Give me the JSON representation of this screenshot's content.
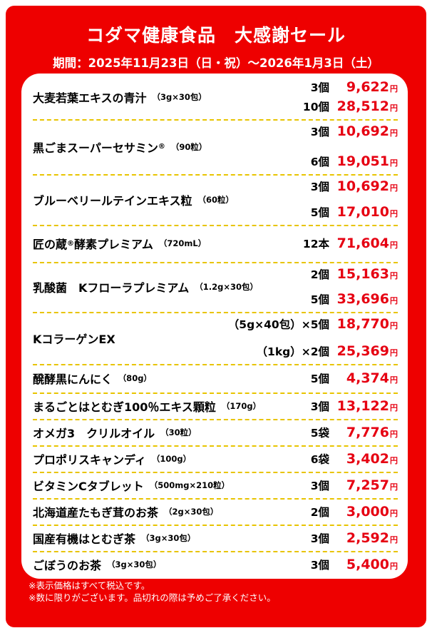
{
  "header": {
    "title": "コダマ健康食品　大感謝セール",
    "period": "期間：2025年11月23日（日・祝）～2026年1月3日（土）"
  },
  "products": [
    {
      "name": "大麦若葉エキスの青汁",
      "spec": "（3g×30包）",
      "tiers": [
        {
          "qty": "3個",
          "price": "9,622",
          "yen": "円"
        },
        {
          "qty": "10個",
          "price": "28,512",
          "yen": "円"
        }
      ]
    },
    {
      "name": "黒ごまスーパーセサミン",
      "mark": "®",
      "spec": "（90粒）",
      "tiers": [
        {
          "qty": "3個",
          "price": "10,692",
          "yen": "円"
        },
        {
          "qty": "6個",
          "price": "19,051",
          "yen": "円"
        }
      ]
    },
    {
      "name": "ブルーベリールテインエキス粒",
      "spec": "（60粒）",
      "tiers": [
        {
          "qty": "3個",
          "price": "10,692",
          "yen": "円"
        },
        {
          "qty": "5個",
          "price": "17,010",
          "yen": "円"
        }
      ]
    },
    {
      "name": "匠の蔵",
      "mark": "®",
      "name2": "酵素プレミアム",
      "spec": "（720mL）",
      "tiers": [
        {
          "qty": "12本",
          "price": "71,604",
          "yen": "円"
        }
      ]
    },
    {
      "name": "乳酸菌　Kフローラプレミアム",
      "spec": "（1.2g×30包）",
      "tiers": [
        {
          "qty": "2個",
          "price": "15,163",
          "yen": "円"
        },
        {
          "qty": "5個",
          "price": "33,696",
          "yen": "円"
        }
      ]
    },
    {
      "name": "KコラーゲンEX",
      "tiers": [
        {
          "qty": "（5g×40包）×5個",
          "price": "18,770",
          "yen": "円"
        },
        {
          "qty": "（1kg）×2個",
          "price": "25,369",
          "yen": "円"
        }
      ]
    },
    {
      "name": "醗酵黒にんにく",
      "spec": "（80g）",
      "tiers": [
        {
          "qty": "5個",
          "price": "4,374",
          "yen": "円"
        }
      ]
    },
    {
      "name": "まるごとはとむぎ100％エキス顆粒",
      "spec": "（170g）",
      "tiers": [
        {
          "qty": "3個",
          "price": "13,122",
          "yen": "円"
        }
      ]
    },
    {
      "name": "オメガ3　クリルオイル",
      "spec": "（30粒）",
      "tiers": [
        {
          "qty": "5袋",
          "price": "7,776",
          "yen": "円"
        }
      ]
    },
    {
      "name": "プロポリスキャンディ",
      "spec": "（100g）",
      "tiers": [
        {
          "qty": "6袋",
          "price": "3,402",
          "yen": "円"
        }
      ]
    },
    {
      "name": "ビタミンCタブレット",
      "spec": "（500mg×210粒）",
      "tiers": [
        {
          "qty": "3個",
          "price": "7,257",
          "yen": "円"
        }
      ]
    },
    {
      "name": "北海道産たもぎ茸のお茶",
      "spec": "（2g×30包）",
      "tiers": [
        {
          "qty": "2個",
          "price": "3,000",
          "yen": "円"
        }
      ]
    },
    {
      "name": "国産有機はとむぎ茶",
      "spec": "（3g×30包）",
      "tiers": [
        {
          "qty": "3個",
          "price": "2,592",
          "yen": "円"
        }
      ]
    },
    {
      "name": "ごぼうのお茶",
      "spec": "（3g×30包）",
      "tiers": [
        {
          "qty": "3個",
          "price": "5,400",
          "yen": "円"
        }
      ]
    }
  ],
  "notes": [
    "※表示価格はすべて税込です。",
    "※数に限りがございます。品切れの際は予めご了承ください。"
  ],
  "colors": {
    "background": "#ee0000",
    "price": "#e60012",
    "divider": "#e8c400"
  }
}
